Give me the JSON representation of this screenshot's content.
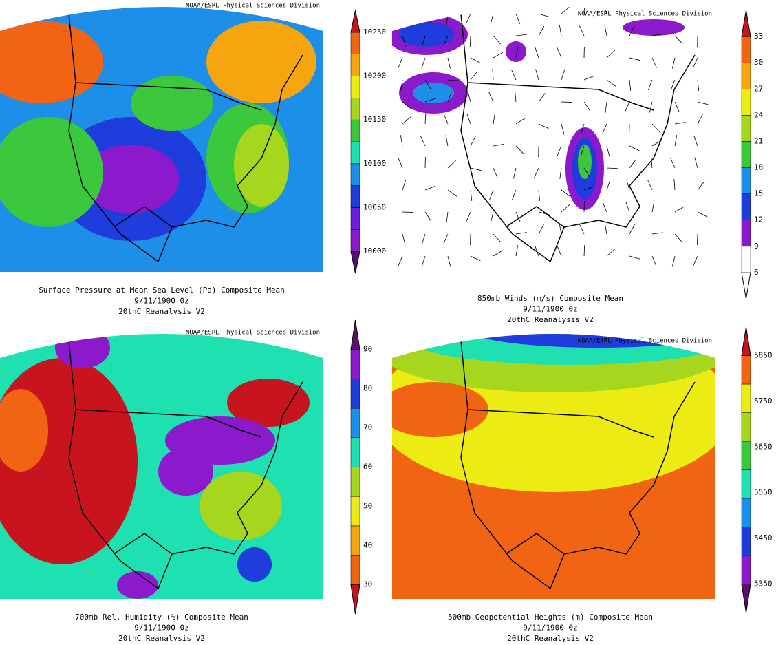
{
  "panels": [
    {
      "credit": "NOAA/ESRL Physical Sciences Division",
      "title": "Surface Pressure at Mean Sea Level (Pa)   Composite Mean",
      "date": "9/11/1900 0z",
      "source": "20thC Reanalysis V2",
      "colorbar_labels": [
        "10000",
        "10050",
        "10100",
        "10150",
        "10200",
        "10250"
      ]
    },
    {
      "credit": "NOAA/ESRL Physical Sciences Division",
      "title": "850mb Winds (m/s)   Composite Mean",
      "date": "9/11/1900 0z",
      "source": "20thC Reanalysis V2",
      "colorbar_labels": [
        "6",
        "9",
        "12",
        "15",
        "18",
        "21",
        "24",
        "27",
        "30",
        "33"
      ]
    },
    {
      "credit": "NOAA/ESRL Physical Sciences Division",
      "title": "700mb Rel. Humidity (%)   Composite Mean",
      "date": "9/11/1900 0z",
      "source": "20thC Reanalysis V2",
      "colorbar_labels": [
        "30",
        "40",
        "50",
        "60",
        "70",
        "80",
        "90"
      ]
    },
    {
      "credit": "NOAA/ESRL Physical Sciences Division",
      "title": "500mb Geopotential Heights (m)   Composite Mean",
      "date": "9/11/1900 0z",
      "source": "20thC Reanalysis V2",
      "colorbar_labels": [
        "5350",
        "5450",
        "5550",
        "5650",
        "5750",
        "5850"
      ]
    }
  ]
}
